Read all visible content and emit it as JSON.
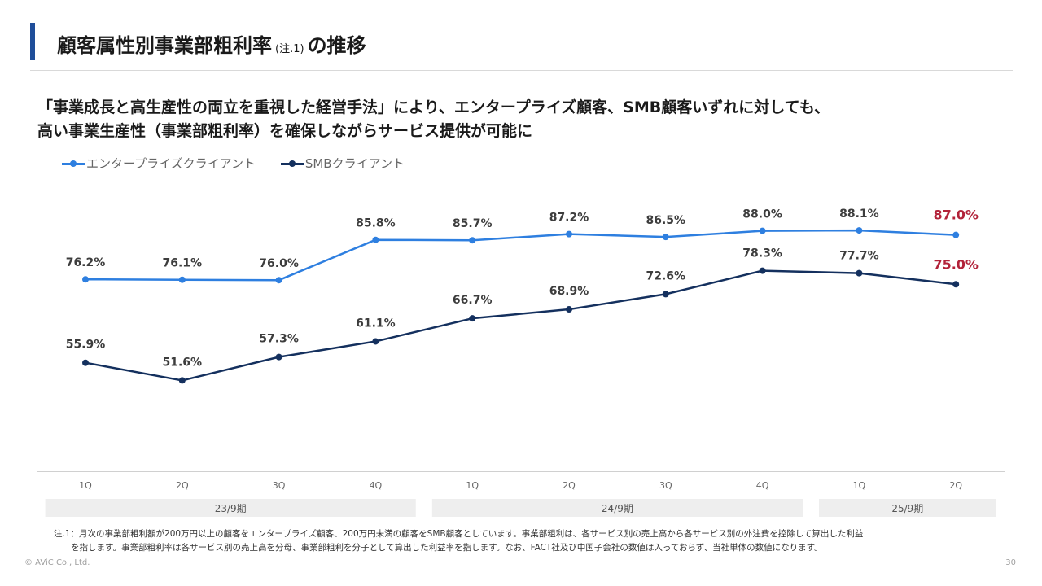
{
  "header": {
    "title_main": "顧客属性別事業部粗利率",
    "title_note": "(注.1)",
    "title_tail": "の推移"
  },
  "lead": {
    "line1": "「事業成長と高生産性の両立を重視した経営手法」により、エンタープライズ顧客、SMB顧客いずれに対しても、",
    "line2": "高い事業生産性（事業部粗利率）を確保しながらサービス提供が可能に"
  },
  "chart_data": {
    "type": "line",
    "categories": [
      "1Q",
      "2Q",
      "3Q",
      "4Q",
      "1Q",
      "2Q",
      "3Q",
      "4Q",
      "1Q",
      "2Q"
    ],
    "periods": [
      {
        "label": "23/9期",
        "count": 4
      },
      {
        "label": "24/9期",
        "count": 4
      },
      {
        "label": "25/9期",
        "count": 2
      }
    ],
    "series": [
      {
        "name": "エンタープライズクライアント",
        "color": "#2e7fe0",
        "values": [
          76.2,
          76.1,
          76.0,
          85.8,
          85.7,
          87.2,
          86.5,
          88.0,
          88.1,
          87.0
        ],
        "labels": [
          "76.2%",
          "76.1%",
          "76.0%",
          "85.8%",
          "85.7%",
          "87.2%",
          "86.5%",
          "88.0%",
          "88.1%",
          "87.0%"
        ]
      },
      {
        "name": "SMBクライアント",
        "color": "#14305e",
        "values": [
          55.9,
          51.6,
          57.3,
          61.1,
          66.7,
          68.9,
          72.6,
          78.3,
          77.7,
          75.0
        ],
        "labels": [
          "55.9%",
          "51.6%",
          "57.3%",
          "61.1%",
          "66.7%",
          "68.9%",
          "72.6%",
          "78.3%",
          "77.7%",
          "75.0%"
        ]
      }
    ],
    "highlight_color": "#b22239",
    "highlight_last": true,
    "grid": false,
    "legend": "top-left"
  },
  "footnote": "注.1：月次の事業部粗利額が200万円以上の顧客をエンタープライズ顧客、200万円未満の顧客をSMB顧客としています。事業部粗利は、各サービス別の売上高から各サービス別の外注費を控除して算出した利益\n　　を指します。事業部粗利率は各サービス別の売上高を分母、事業部粗利を分子として算出した利益率を指します。なお、FACT社及び中国子会社の数値は入っておらず、当社単体の数値になります。",
  "footer": {
    "copyright": "© AViC Co., Ltd.",
    "page": "30"
  }
}
